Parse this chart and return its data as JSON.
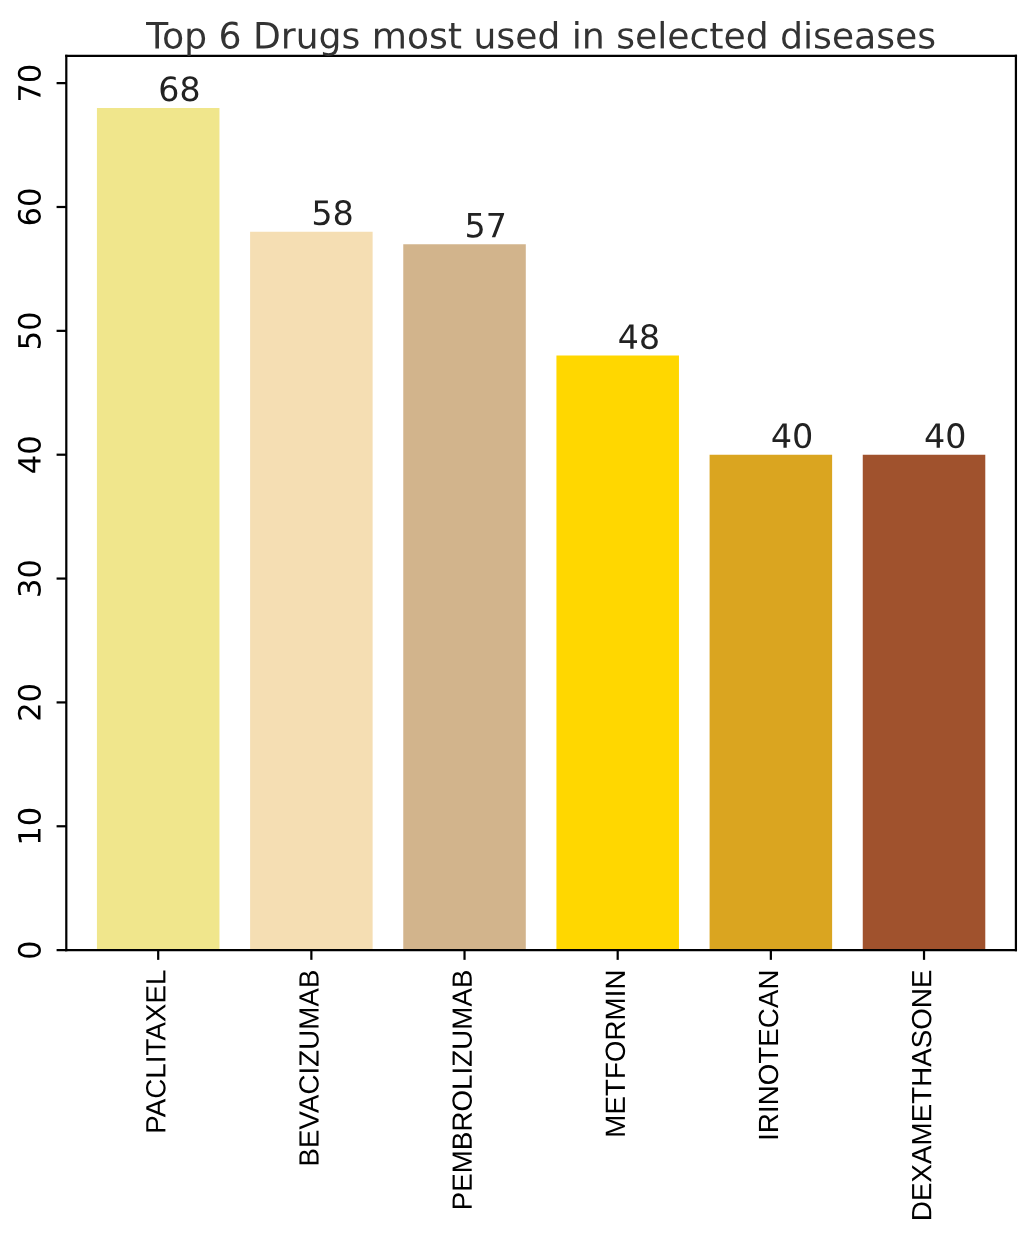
{
  "chart_data": {
    "type": "bar",
    "title": "Top 6 Drugs most used in selected diseases",
    "categories": [
      "PACLITAXEL",
      "BEVACIZUMAB",
      "PEMBROLIZUMAB",
      "METFORMIN",
      "IRINOTECAN",
      "DEXAMETHASONE"
    ],
    "values": [
      68,
      58,
      57,
      48,
      40,
      40
    ],
    "colors": [
      "#f0e68c",
      "#f5deb3",
      "#d2b48c",
      "#ffd700",
      "#daa520",
      "#a0522d"
    ],
    "ylim": [
      0,
      72.2
    ],
    "yticks": [
      0,
      10,
      20,
      30,
      40,
      50,
      60,
      70
    ],
    "data_labels": true,
    "grid": false
  }
}
